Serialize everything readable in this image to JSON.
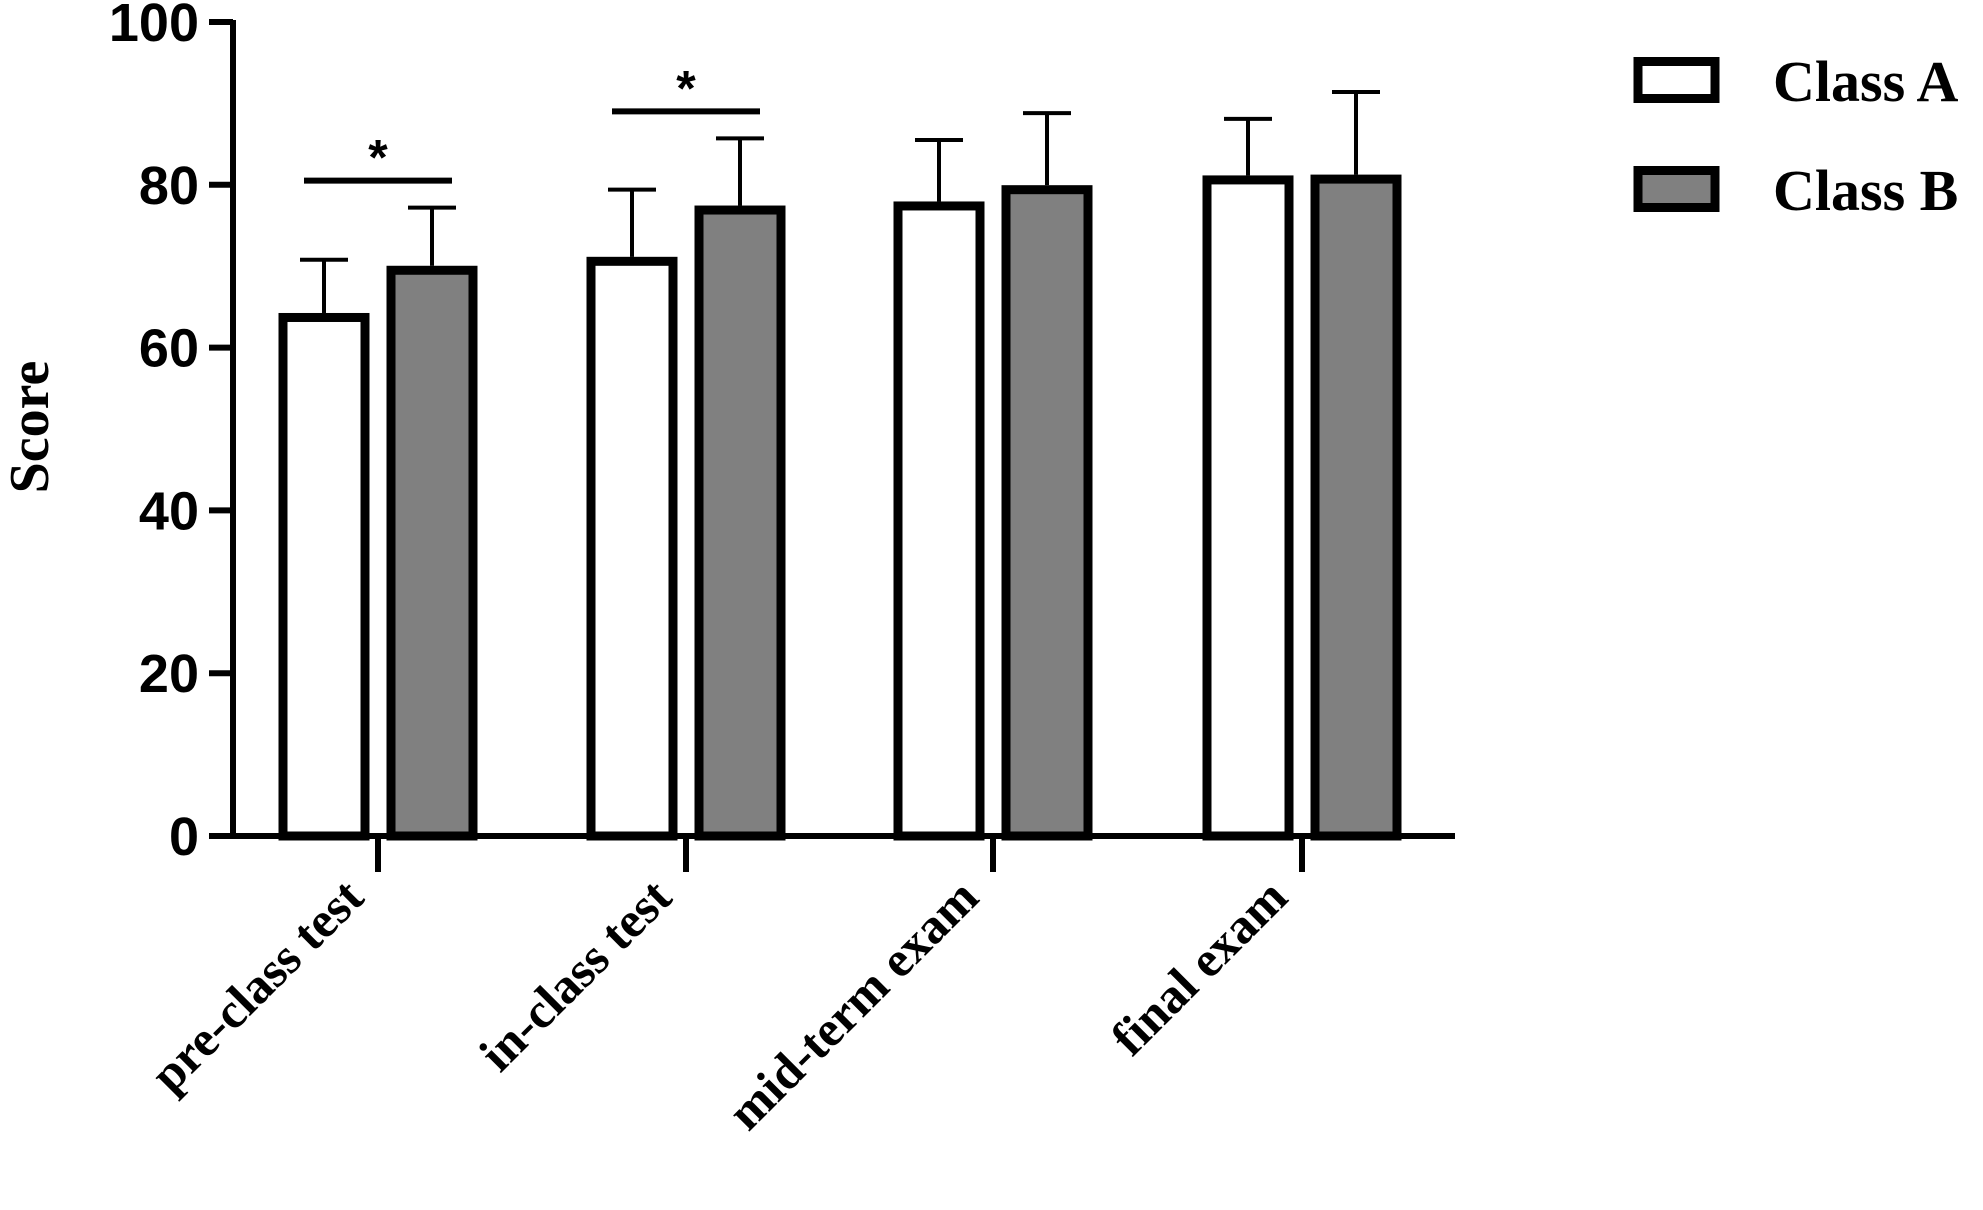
{
  "chart_data": {
    "type": "bar",
    "title": "",
    "xlabel": "",
    "ylabel": "Score",
    "ylim": [
      0,
      100
    ],
    "yticks": [
      0,
      20,
      40,
      60,
      80,
      100
    ],
    "yticks_text": [
      "0",
      "20",
      "40",
      "60",
      "80",
      "100"
    ],
    "categories": [
      "pre-class test",
      "in-class test",
      "mid-term exam",
      "final exam"
    ],
    "series": [
      {
        "name": "Class A",
        "color": "#ffffff",
        "values": [
          63.7,
          70.6,
          77.4,
          80.6
        ],
        "error_upper": [
          7.1,
          8.8,
          8.1,
          7.5
        ]
      },
      {
        "name": "Class B",
        "color": "#808080",
        "values": [
          69.5,
          76.9,
          79.4,
          80.7
        ],
        "error_upper": [
          7.7,
          8.8,
          9.4,
          10.7
        ]
      }
    ],
    "significance": [
      {
        "category": "pre-class test",
        "label": "*"
      },
      {
        "category": "in-class test",
        "label": "*"
      }
    ],
    "grid": false,
    "legend": "top-right",
    "stroke_color": "#000000"
  }
}
